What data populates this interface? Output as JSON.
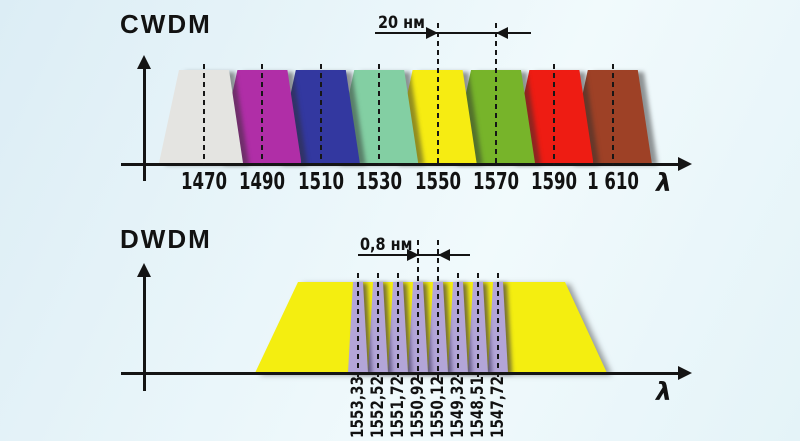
{
  "cwdm": {
    "title": "CWDM",
    "axis_label": "λ",
    "annotation_label": "20 нм",
    "channels": [
      {
        "label": "1470",
        "color": "#e4e4e1"
      },
      {
        "label": "1490",
        "color": "#b02ea7"
      },
      {
        "label": "1510",
        "color": "#3338a0"
      },
      {
        "label": "1530",
        "color": "#83cfa3"
      },
      {
        "label": "1550",
        "color": "#f6ec12"
      },
      {
        "label": "1570",
        "color": "#77b42a"
      },
      {
        "label": "1590",
        "color": "#ee1c13"
      },
      {
        "label": "1 610",
        "color": "#9e4126"
      }
    ]
  },
  "dwdm": {
    "title": "DWDM",
    "axis_label": "λ",
    "annotation_label": "0,8 нм",
    "band_color": "#f4ee10",
    "channel_color": "#b3a5d8",
    "channels": [
      {
        "label": "1553,33"
      },
      {
        "label": "1552,52"
      },
      {
        "label": "1551,72"
      },
      {
        "label": "1550,92"
      },
      {
        "label": "1550,12"
      },
      {
        "label": "1549,32"
      },
      {
        "label": "1548,51"
      },
      {
        "label": "1547,72"
      }
    ]
  },
  "chart_data": [
    {
      "type": "area",
      "title": "CWDM",
      "xlabel": "λ",
      "channel_center_wavelengths_nm": [
        1470,
        1490,
        1510,
        1530,
        1550,
        1570,
        1590,
        1610
      ],
      "channel_spacing_nm": 20,
      "annotation": "20 нм",
      "legend_position": "none",
      "grid": false
    },
    {
      "type": "area",
      "title": "DWDM",
      "xlabel": "λ",
      "channel_center_wavelengths_nm": [
        1553.33,
        1552.52,
        1551.72,
        1550.92,
        1550.12,
        1549.32,
        1548.51,
        1547.72
      ],
      "channel_spacing_nm": 0.8,
      "annotation": "0,8 нм",
      "legend_position": "none",
      "grid": false
    }
  ]
}
